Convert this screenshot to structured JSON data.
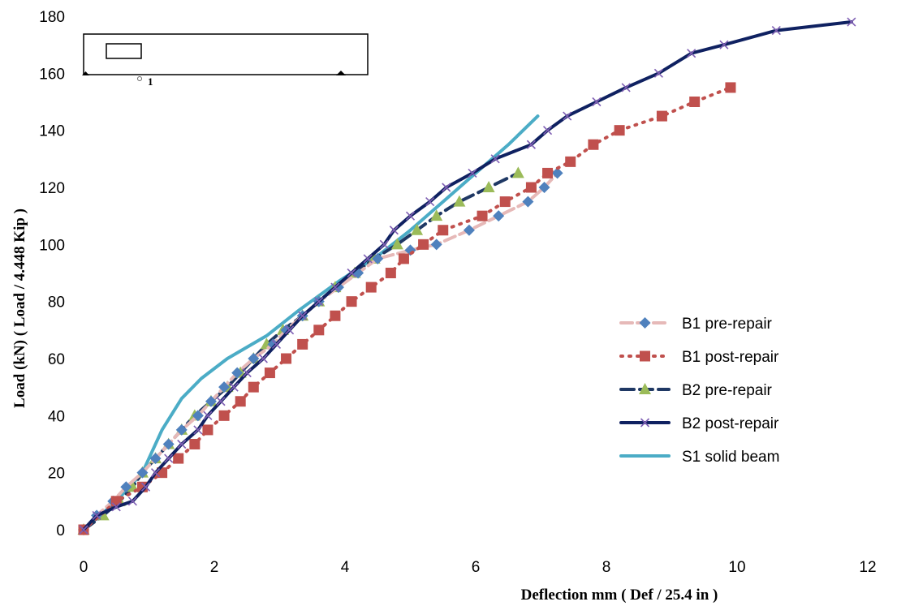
{
  "chart_data": {
    "type": "line",
    "xlabel": "Deflection mm ( Def / 25.4   in )",
    "ylabel": "Load  (kN)  ( Load / 4.448   Kip )",
    "xlim": [
      0,
      12
    ],
    "ylim": [
      0,
      180
    ],
    "xticks": [
      "0",
      "2",
      "4",
      "6",
      "8",
      "10",
      "12"
    ],
    "yticks": [
      "0",
      "20",
      "40",
      "60",
      "80",
      "100",
      "120",
      "140",
      "160",
      "180"
    ],
    "grid": false,
    "legend_position": "right",
    "series": [
      {
        "name": "B1  pre-repair",
        "color": "#4f81bd",
        "line_color": "#e6b9b8",
        "dash": "dash",
        "marker": "diamond",
        "points": [
          [
            0,
            0
          ],
          [
            0.2,
            5
          ],
          [
            0.45,
            10
          ],
          [
            0.65,
            15
          ],
          [
            0.9,
            20
          ],
          [
            1.1,
            25
          ],
          [
            1.3,
            30
          ],
          [
            1.5,
            35
          ],
          [
            1.75,
            40
          ],
          [
            1.95,
            45
          ],
          [
            2.15,
            50
          ],
          [
            2.35,
            55
          ],
          [
            2.6,
            60
          ],
          [
            2.9,
            65
          ],
          [
            3.1,
            70
          ],
          [
            3.35,
            75
          ],
          [
            3.6,
            80
          ],
          [
            3.9,
            85
          ],
          [
            4.2,
            90
          ],
          [
            4.5,
            95
          ],
          [
            5.0,
            98
          ],
          [
            5.4,
            100
          ],
          [
            5.9,
            105
          ],
          [
            6.35,
            110
          ],
          [
            6.8,
            115
          ],
          [
            7.05,
            120
          ],
          [
            7.25,
            125
          ]
        ]
      },
      {
        "name": "B1 post-repair",
        "color": "#c0504d",
        "line_color": "#c0504d",
        "dash": "dot",
        "marker": "square",
        "points": [
          [
            0,
            0
          ],
          [
            0.5,
            10
          ],
          [
            0.9,
            15
          ],
          [
            1.2,
            20
          ],
          [
            1.45,
            25
          ],
          [
            1.7,
            30
          ],
          [
            1.9,
            35
          ],
          [
            2.15,
            40
          ],
          [
            2.4,
            45
          ],
          [
            2.6,
            50
          ],
          [
            2.85,
            55
          ],
          [
            3.1,
            60
          ],
          [
            3.35,
            65
          ],
          [
            3.6,
            70
          ],
          [
            3.85,
            75
          ],
          [
            4.1,
            80
          ],
          [
            4.4,
            85
          ],
          [
            4.7,
            90
          ],
          [
            4.9,
            95
          ],
          [
            5.2,
            100
          ],
          [
            5.5,
            105
          ],
          [
            6.1,
            110
          ],
          [
            6.45,
            115
          ],
          [
            6.85,
            120
          ],
          [
            7.1,
            125
          ],
          [
            7.45,
            129
          ],
          [
            7.8,
            135
          ],
          [
            8.2,
            140
          ],
          [
            8.85,
            145
          ],
          [
            9.35,
            150
          ],
          [
            9.9,
            155
          ]
        ]
      },
      {
        "name": "B2 pre-repair",
        "color": "#9bbb59",
        "line_color": "#1f3864",
        "dash": "longdash",
        "marker": "triangle",
        "points": [
          [
            0,
            0
          ],
          [
            0.3,
            5
          ],
          [
            0.55,
            10
          ],
          [
            0.75,
            15
          ],
          [
            0.9,
            20
          ],
          [
            1.1,
            25
          ],
          [
            1.3,
            30
          ],
          [
            1.5,
            35
          ],
          [
            1.7,
            40
          ],
          [
            1.95,
            45
          ],
          [
            2.2,
            50
          ],
          [
            2.4,
            55
          ],
          [
            2.6,
            60
          ],
          [
            2.8,
            65
          ],
          [
            3.05,
            70
          ],
          [
            3.35,
            75
          ],
          [
            3.6,
            80
          ],
          [
            3.85,
            85
          ],
          [
            4.15,
            90
          ],
          [
            4.45,
            95
          ],
          [
            4.8,
            100
          ],
          [
            5.1,
            105
          ],
          [
            5.4,
            110
          ],
          [
            5.75,
            115
          ],
          [
            6.2,
            120
          ],
          [
            6.65,
            125
          ]
        ]
      },
      {
        "name": "B2 post-repair",
        "color": "#7f5fb3",
        "line_color": "#0f2161",
        "dash": "solid",
        "marker": "x",
        "points": [
          [
            0,
            0
          ],
          [
            0.2,
            5
          ],
          [
            0.5,
            8
          ],
          [
            0.75,
            10
          ],
          [
            0.95,
            15
          ],
          [
            1.1,
            20
          ],
          [
            1.3,
            25
          ],
          [
            1.5,
            30
          ],
          [
            1.75,
            35
          ],
          [
            1.9,
            40
          ],
          [
            2.1,
            45
          ],
          [
            2.3,
            50
          ],
          [
            2.5,
            55
          ],
          [
            2.75,
            60
          ],
          [
            2.95,
            65
          ],
          [
            3.15,
            70
          ],
          [
            3.35,
            75
          ],
          [
            3.6,
            80
          ],
          [
            3.85,
            85
          ],
          [
            4.1,
            90
          ],
          [
            4.35,
            95
          ],
          [
            4.6,
            100
          ],
          [
            4.75,
            105
          ],
          [
            5.0,
            110
          ],
          [
            5.3,
            115
          ],
          [
            5.55,
            120
          ],
          [
            5.95,
            125
          ],
          [
            6.3,
            130
          ],
          [
            6.85,
            135
          ],
          [
            7.1,
            140
          ],
          [
            7.4,
            145
          ],
          [
            7.85,
            150
          ],
          [
            8.3,
            155
          ],
          [
            8.8,
            160
          ],
          [
            9.3,
            167
          ],
          [
            9.8,
            170
          ],
          [
            10.6,
            175
          ],
          [
            11.75,
            178
          ]
        ]
      },
      {
        "name": "S1 solid beam",
        "color": "#4bacc6",
        "line_color": "#4bacc6",
        "dash": "solid",
        "marker": "none",
        "points": [
          [
            0,
            0
          ],
          [
            0.5,
            10
          ],
          [
            0.9,
            20
          ],
          [
            1.2,
            35
          ],
          [
            1.5,
            46
          ],
          [
            1.8,
            53
          ],
          [
            2.2,
            60
          ],
          [
            2.8,
            68
          ],
          [
            3.3,
            77
          ],
          [
            3.9,
            87
          ],
          [
            4.5,
            96
          ],
          [
            5.0,
            105
          ],
          [
            5.5,
            115
          ],
          [
            6.0,
            125
          ],
          [
            6.5,
            135
          ],
          [
            6.95,
            145
          ]
        ]
      }
    ]
  }
}
